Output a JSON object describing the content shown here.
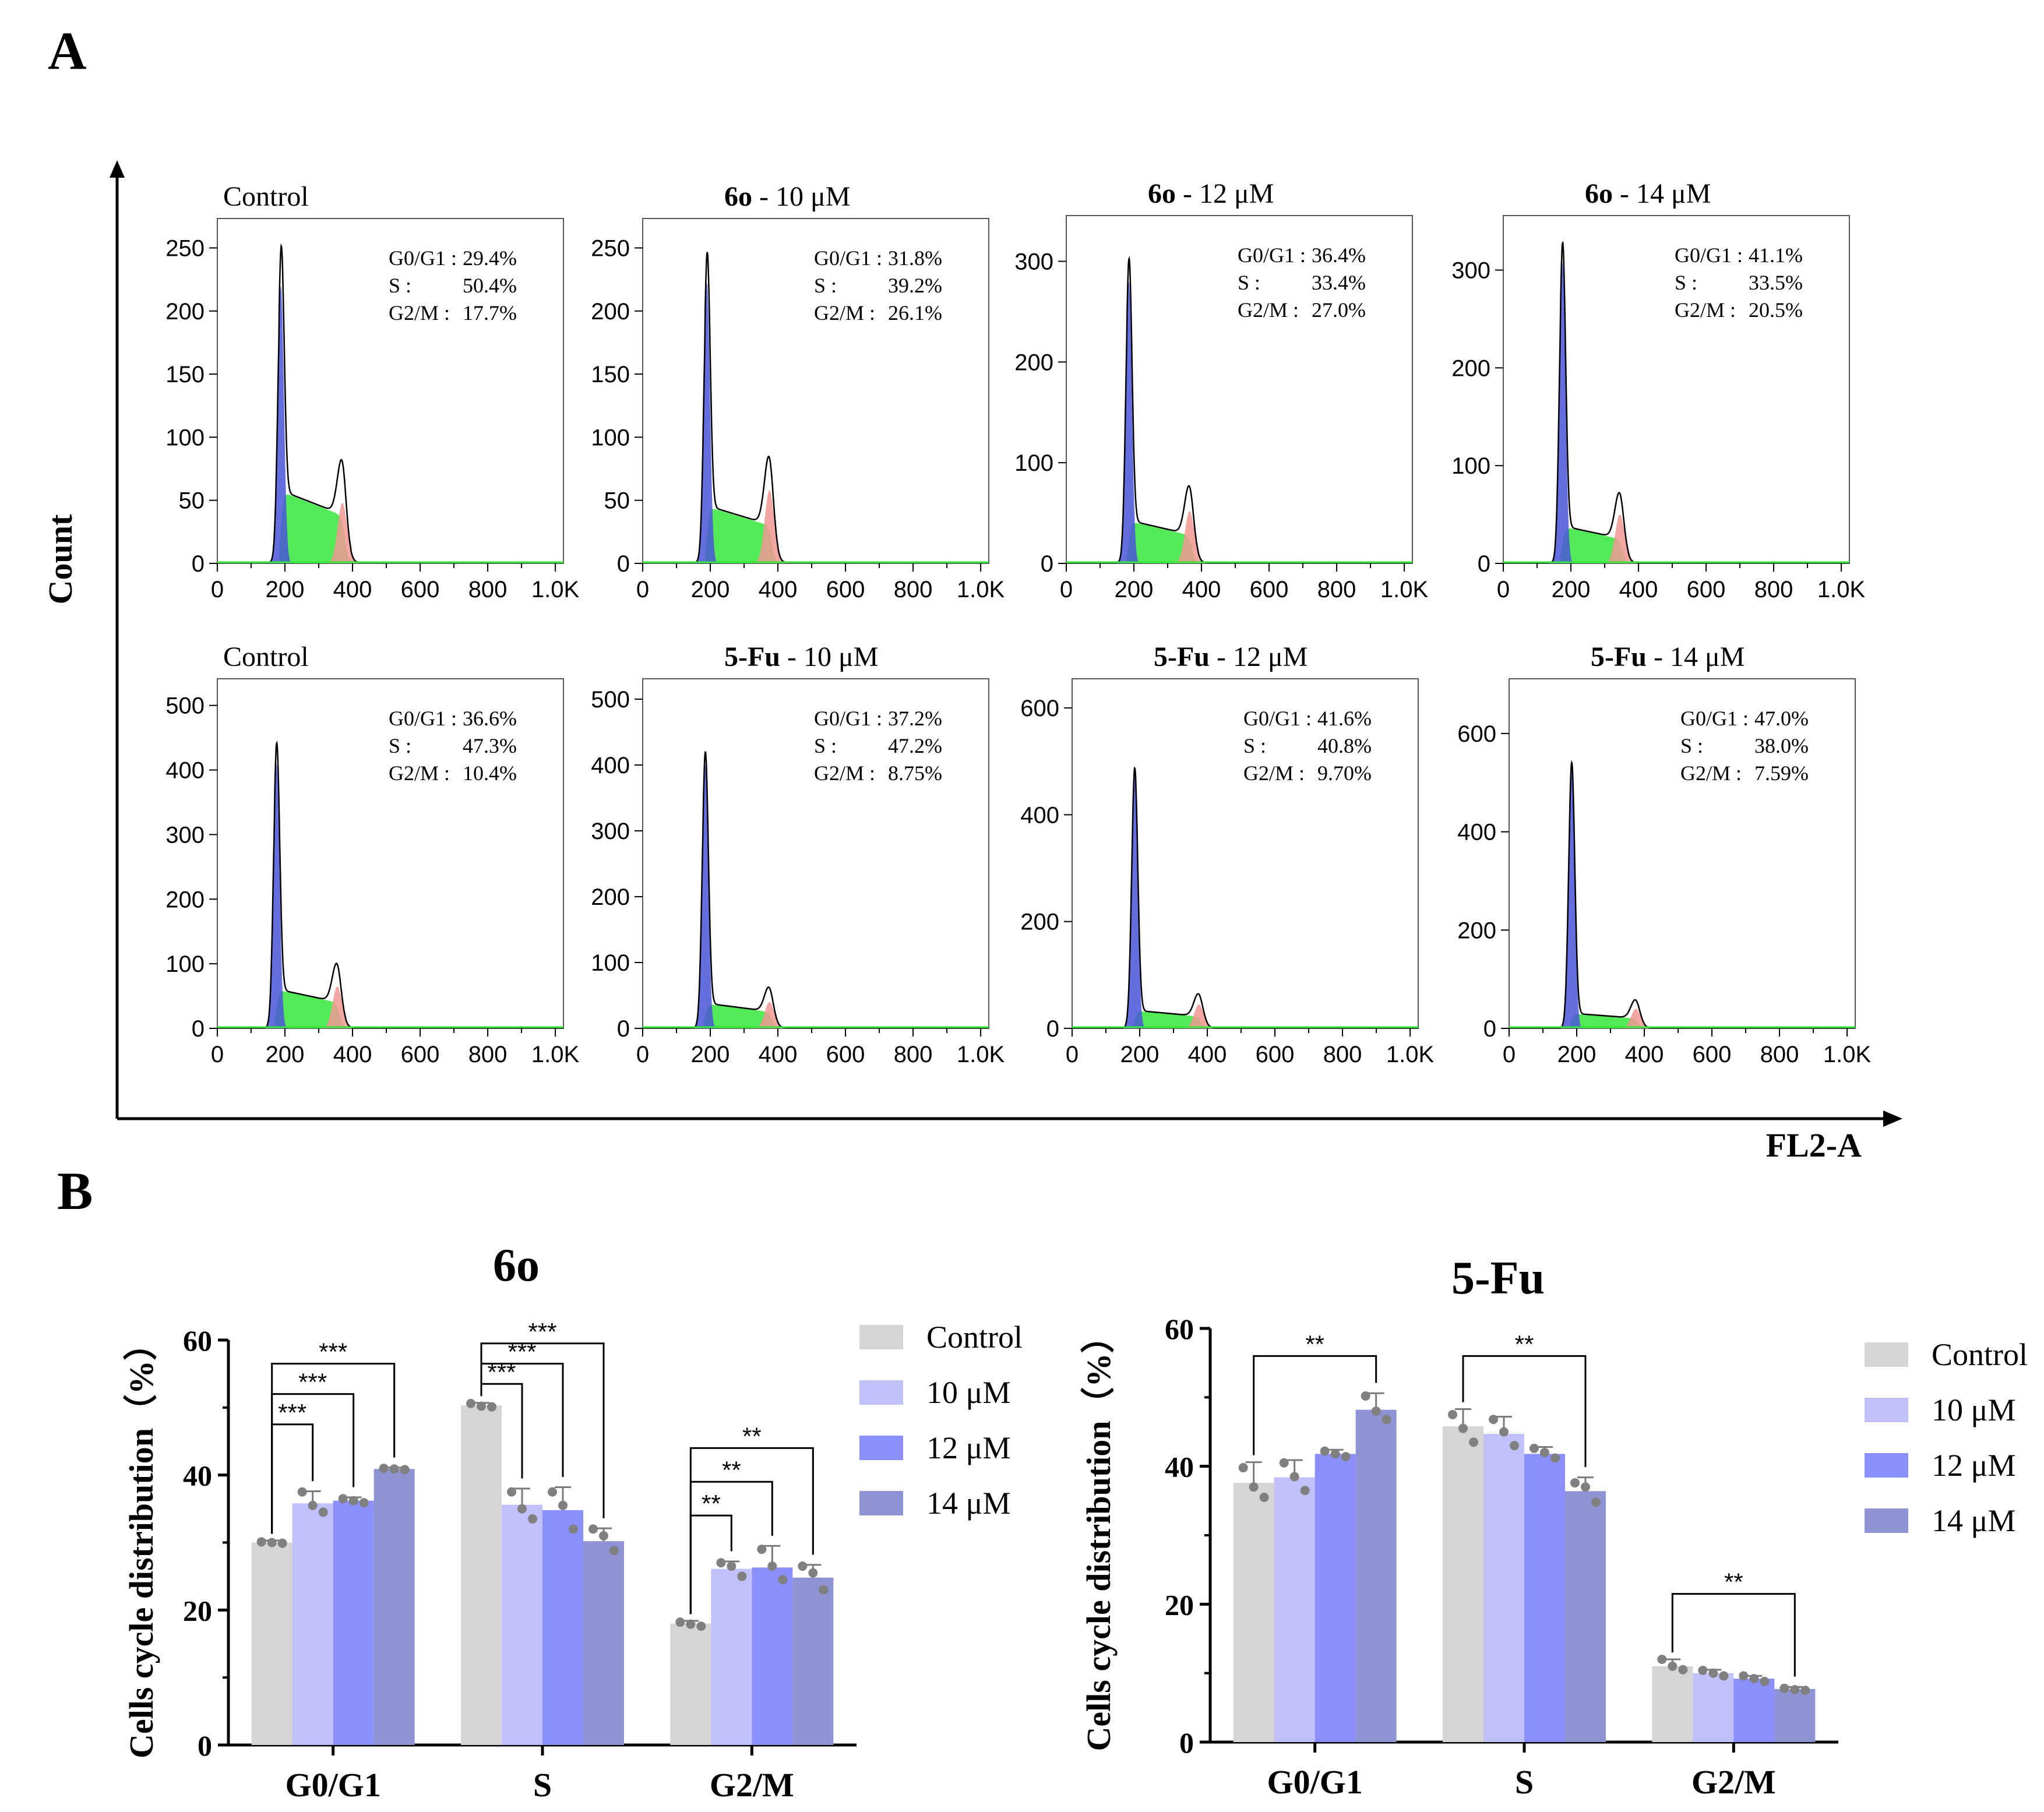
{
  "panel_labels": {
    "a": "A",
    "b": "B"
  },
  "panel_a_axes": {
    "y": "Count",
    "x": "FL2-A"
  },
  "colors": {
    "g1": "#4a55d8",
    "s": "#36e63a",
    "g2m": "#f19892",
    "trace": "#000000",
    "control_bar": "#d5d5d5",
    "bar10": "#c0c0fb",
    "bar12": "#8b8ff9",
    "bar14": "#8d93d3",
    "dot": "#808080"
  },
  "chart_data": [
    {
      "type": "histogram",
      "name": "control-6o",
      "title_bold": "",
      "title_rest": "Control",
      "x_ticks": [
        "0",
        "200",
        "400",
        "600",
        "800",
        "1.0K"
      ],
      "xlim": [
        0,
        1024
      ],
      "y_ticks": [
        "0",
        "50",
        "100",
        "150",
        "200",
        "250"
      ],
      "ylim": [
        0,
        265
      ],
      "peak_g1": 220,
      "pos_g1": 188,
      "peak_g2": 48,
      "pos_g2": 370,
      "s_level": 38,
      "stats": [
        {
          "label": "G0/G1 :",
          "value": "29.4%"
        },
        {
          "label": "S      :",
          "value": "50.4%"
        },
        {
          "label": "G2/M :",
          "value": "17.7%"
        }
      ]
    },
    {
      "type": "histogram",
      "name": "6o-10",
      "title_bold": "6o",
      "title_rest": " - 10 μM",
      "x_ticks": [
        "0",
        "200",
        "400",
        "600",
        "800",
        "1.0K"
      ],
      "xlim": [
        0,
        1024
      ],
      "y_ticks": [
        "0",
        "50",
        "100",
        "150",
        "200",
        "250"
      ],
      "ylim": [
        0,
        265
      ],
      "peak_g1": 222,
      "pos_g1": 190,
      "peak_g2": 58,
      "pos_g2": 375,
      "s_level": 30,
      "stats": [
        {
          "label": "G0/G1 :",
          "value": "31.8%"
        },
        {
          "label": "S      :",
          "value": "39.2%"
        },
        {
          "label": "G2/M :",
          "value": "26.1%"
        }
      ]
    },
    {
      "type": "histogram",
      "name": "6o-12",
      "title_bold": "6o",
      "title_rest": " - 12 μM",
      "x_ticks": [
        "0",
        "200",
        "400",
        "600",
        "800",
        "1.0K"
      ],
      "xlim": [
        0,
        1024
      ],
      "y_ticks": [
        "0",
        "100",
        "200",
        "300"
      ],
      "ylim": [
        0,
        335
      ],
      "peak_g1": 280,
      "pos_g1": 185,
      "peak_g2": 52,
      "pos_g2": 365,
      "s_level": 28,
      "stats": [
        {
          "label": "G0/G1 :",
          "value": "36.4%"
        },
        {
          "label": "S      :",
          "value": "33.4%"
        },
        {
          "label": "G2/M :",
          "value": "27.0%"
        }
      ]
    },
    {
      "type": "histogram",
      "name": "6o-14",
      "title_bold": "6o",
      "title_rest": " - 14 μM",
      "x_ticks": [
        "0",
        "200",
        "400",
        "600",
        "800",
        "1.0K"
      ],
      "xlim": [
        0,
        1024
      ],
      "y_ticks": [
        "0",
        "100",
        "200",
        "300"
      ],
      "ylim": [
        0,
        345
      ],
      "peak_g1": 308,
      "pos_g1": 175,
      "peak_g2": 50,
      "pos_g2": 345,
      "s_level": 25,
      "stats": [
        {
          "label": "G0/G1 :",
          "value": "41.1%"
        },
        {
          "label": "S      :",
          "value": "33.5%"
        },
        {
          "label": "G2/M :",
          "value": "20.5%"
        }
      ]
    },
    {
      "type": "histogram",
      "name": "control-5fu",
      "title_bold": "",
      "title_rest": "Control",
      "x_ticks": [
        "0",
        "200",
        "400",
        "600",
        "800",
        "1.0K"
      ],
      "xlim": [
        0,
        1024
      ],
      "y_ticks": [
        "0",
        "100",
        "200",
        "300",
        "400",
        "500"
      ],
      "ylim": [
        0,
        525
      ],
      "peak_g1": 410,
      "pos_g1": 175,
      "peak_g2": 65,
      "pos_g2": 355,
      "s_level": 40,
      "stats": [
        {
          "label": "G0/G1 :",
          "value": "36.6%"
        },
        {
          "label": "S      :",
          "value": "47.3%"
        },
        {
          "label": "G2/M :",
          "value": "10.4%"
        }
      ]
    },
    {
      "type": "histogram",
      "name": "5fu-10",
      "title_bold": "5-Fu",
      "title_rest": " - 10 μM",
      "x_ticks": [
        "0",
        "200",
        "400",
        "600",
        "800",
        "1.0K"
      ],
      "xlim": [
        0,
        1024
      ],
      "y_ticks": [
        "0",
        "100",
        "200",
        "300",
        "400",
        "500"
      ],
      "ylim": [
        0,
        515
      ],
      "peak_g1": 400,
      "pos_g1": 185,
      "peak_g2": 40,
      "pos_g2": 375,
      "s_level": 25,
      "stats": [
        {
          "label": "G0/G1 :",
          "value": "37.2%"
        },
        {
          "label": "S      :",
          "value": "47.2%"
        },
        {
          "label": "G2/M :",
          "value": "8.75%"
        }
      ]
    },
    {
      "type": "histogram",
      "name": "5fu-12",
      "title_bold": "5-Fu",
      "title_rest": " - 12 μM",
      "x_ticks": [
        "0",
        "200",
        "400",
        "600",
        "800",
        "1.0K"
      ],
      "xlim": [
        0,
        1024
      ],
      "y_ticks": [
        "0",
        "200",
        "400",
        "600"
      ],
      "ylim": [
        0,
        635
      ],
      "peak_g1": 470,
      "pos_g1": 185,
      "peak_g2": 45,
      "pos_g2": 375,
      "s_level": 22,
      "stats": [
        {
          "label": "G0/G1 :",
          "value": "41.6%"
        },
        {
          "label": "S      :",
          "value": "40.8%"
        },
        {
          "label": "G2/M :",
          "value": "9.70%"
        }
      ]
    },
    {
      "type": "histogram",
      "name": "5fu-14",
      "title_bold": "5-Fu",
      "title_rest": " - 14 μM",
      "x_ticks": [
        "0",
        "200",
        "400",
        "600",
        "800",
        "1.0K"
      ],
      "xlim": [
        0,
        1024
      ],
      "y_ticks": [
        "0",
        "200",
        "400",
        "600"
      ],
      "ylim": [
        0,
        690
      ],
      "peak_g1": 525,
      "pos_g1": 185,
      "peak_g2": 40,
      "pos_g2": 375,
      "s_level": 20,
      "stats": [
        {
          "label": "G0/G1 :",
          "value": "47.0%"
        },
        {
          "label": "S      :",
          "value": "38.0%"
        },
        {
          "label": "G2/M :",
          "value": "7.59%"
        }
      ]
    },
    {
      "type": "bar",
      "name": "bar-6o",
      "title": "6o",
      "ylabel": "Cells cycle distribution（%）",
      "categories": [
        "G0/G1",
        "S",
        "G2/M"
      ],
      "y_ticks": [
        "0",
        "20",
        "40",
        "60"
      ],
      "ylim": [
        0,
        60
      ],
      "series": [
        {
          "name": "Control",
          "values": [
            30.0,
            50.3,
            18.0
          ],
          "err": [
            0.3,
            0.4,
            0.4
          ],
          "dots": [
            [
              30.1,
              30.0,
              29.9
            ],
            [
              50.6,
              50.2,
              50.1
            ],
            [
              18.2,
              17.9,
              17.6
            ]
          ]
        },
        {
          "name": "10 μM",
          "values": [
            35.8,
            35.6,
            26.1
          ],
          "err": [
            1.8,
            2.4,
            1.1
          ],
          "dots": [
            [
              37.5,
              35.5,
              34.5
            ],
            [
              37.5,
              35.0,
              33.5
            ],
            [
              27.0,
              26.5,
              25.0
            ]
          ]
        },
        {
          "name": "12 μM",
          "values": [
            36.2,
            34.8,
            26.3
          ],
          "err": [
            0.5,
            3.4,
            3.2
          ],
          "dots": [
            [
              36.5,
              36.2,
              35.9
            ],
            [
              37.5,
              35.5,
              32.0
            ],
            [
              29.0,
              26.5,
              24.5
            ]
          ]
        },
        {
          "name": "14 μM",
          "values": [
            40.9,
            30.2,
            24.8
          ],
          "err": [
            0.2,
            1.9,
            1.9
          ],
          "dots": [
            [
              41.0,
              40.9,
              40.8
            ],
            [
              32.0,
              31.0,
              28.8
            ],
            [
              26.5,
              25.5,
              23.0
            ]
          ]
        }
      ],
      "significance": [
        {
          "group": 0,
          "from": 0,
          "to": 1,
          "label": "***",
          "y": 47.5
        },
        {
          "group": 0,
          "from": 0,
          "to": 2,
          "label": "***",
          "y": 52.0
        },
        {
          "group": 0,
          "from": 0,
          "to": 3,
          "label": "***",
          "y": 56.5
        },
        {
          "group": 1,
          "from": 0,
          "to": 1,
          "label": "***",
          "y": 53.5
        },
        {
          "group": 1,
          "from": 0,
          "to": 2,
          "label": "***",
          "y": 56.5
        },
        {
          "group": 1,
          "from": 0,
          "to": 3,
          "label": "***",
          "y": 59.5
        },
        {
          "group": 2,
          "from": 0,
          "to": 1,
          "label": "**",
          "y": 34.0
        },
        {
          "group": 2,
          "from": 0,
          "to": 2,
          "label": "**",
          "y": 39.0
        },
        {
          "group": 2,
          "from": 0,
          "to": 3,
          "label": "**",
          "y": 44.0
        }
      ]
    },
    {
      "type": "bar",
      "name": "bar-5fu",
      "title": "5-Fu",
      "ylabel": "Cells cycle distribution（%）",
      "categories": [
        "G0/G1",
        "S",
        "G2/M"
      ],
      "y_ticks": [
        "0",
        "20",
        "40",
        "60"
      ],
      "ylim": [
        0,
        60
      ],
      "series": [
        {
          "name": "Control",
          "values": [
            37.6,
            45.8,
            11.0
          ],
          "err": [
            3.0,
            2.5,
            1.0
          ],
          "dots": [
            [
              39.8,
              37.0,
              35.5
            ],
            [
              47.5,
              45.5,
              43.5
            ],
            [
              12.0,
              11.0,
              10.5
            ]
          ]
        },
        {
          "name": "10 μM",
          "values": [
            38.4,
            44.7,
            10.0
          ],
          "err": [
            2.5,
            2.5,
            0.5
          ],
          "dots": [
            [
              40.5,
              38.5,
              36.5
            ],
            [
              46.8,
              45.0,
              43.0
            ],
            [
              10.4,
              10.0,
              9.6
            ]
          ]
        },
        {
          "name": "12 μM",
          "values": [
            41.8,
            41.8,
            9.2
          ],
          "err": [
            0.6,
            1.0,
            0.4
          ],
          "dots": [
            [
              42.2,
              41.8,
              41.4
            ],
            [
              42.6,
              42.0,
              41.2
            ],
            [
              9.6,
              9.2,
              8.8
            ]
          ]
        },
        {
          "name": "14 μM",
          "values": [
            48.2,
            36.4,
            7.7
          ],
          "err": [
            2.4,
            2.0,
            0.3
          ],
          "dots": [
            [
              50.2,
              48.0,
              46.8
            ],
            [
              37.6,
              37.0,
              34.8
            ],
            [
              7.8,
              7.6,
              7.5
            ]
          ]
        }
      ],
      "significance": [
        {
          "group": 0,
          "from": 0,
          "to": 3,
          "label": "**",
          "y": 56.0
        },
        {
          "group": 1,
          "from": 0,
          "to": 3,
          "label": "**",
          "y": 56.0
        },
        {
          "group": 2,
          "from": 0,
          "to": 3,
          "label": "**",
          "y": 21.5
        }
      ]
    }
  ]
}
